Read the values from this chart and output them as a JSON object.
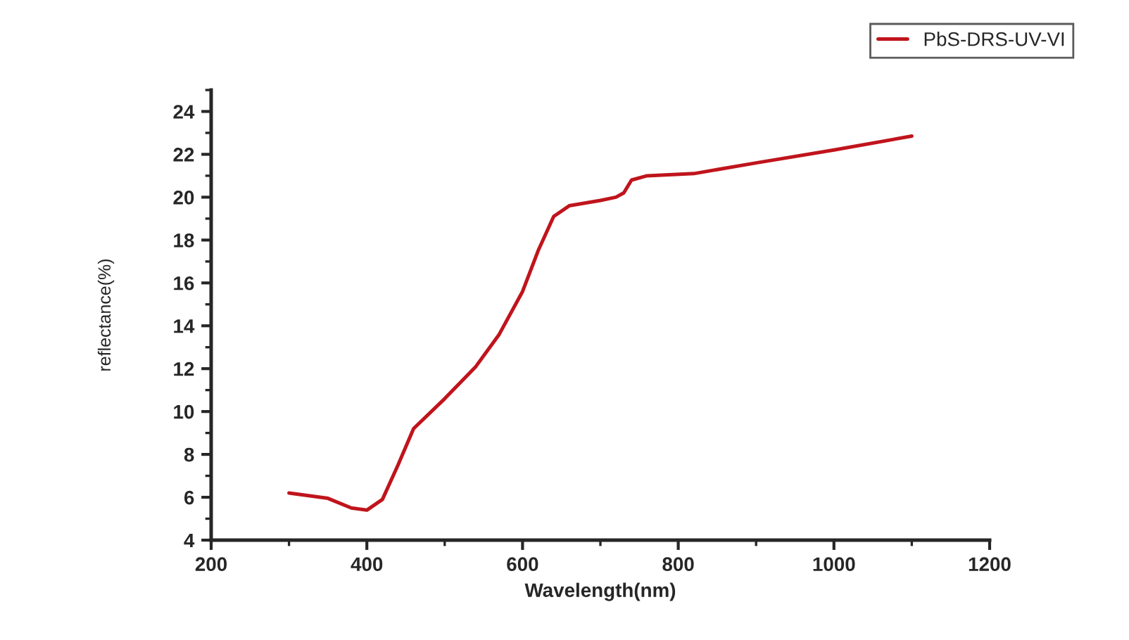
{
  "chart_data": {
    "type": "line",
    "xlabel": "Wavelength(nm)",
    "ylabel": "reflectance(%)",
    "x": [
      300,
      350,
      380,
      400,
      420,
      440,
      460,
      500,
      540,
      570,
      600,
      620,
      640,
      660,
      700,
      720,
      730,
      740,
      760,
      820,
      900,
      1000,
      1100
    ],
    "series": [
      {
        "name": "PbS-DRS-UV-VI",
        "color": "#c0141c",
        "values": [
          6.2,
          5.95,
          5.5,
          5.4,
          5.9,
          7.5,
          9.2,
          10.6,
          12.1,
          13.6,
          15.6,
          17.5,
          19.1,
          19.6,
          19.85,
          20.0,
          20.2,
          20.8,
          21.0,
          21.1,
          21.6,
          22.2,
          22.85
        ]
      }
    ],
    "xlim": [
      200,
      1200
    ],
    "xticks": [
      200,
      400,
      600,
      800,
      1000,
      1200
    ],
    "ylim": [
      4,
      25
    ],
    "yticks": [
      4,
      6,
      8,
      10,
      12,
      14,
      16,
      18,
      20,
      22,
      24
    ],
    "grid": false,
    "legend": "top right",
    "marker": "none",
    "line_style": "solid"
  }
}
